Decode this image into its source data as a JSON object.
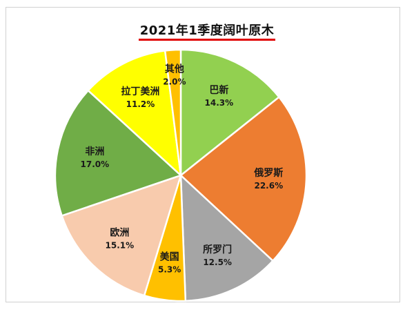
{
  "chart_data": {
    "type": "pie",
    "title": "2021年1季度阔叶原木",
    "slices": [
      {
        "label": "巴新",
        "value": 14.3,
        "value_label": "14.3%",
        "color": "#92d050"
      },
      {
        "label": "俄罗斯",
        "value": 22.6,
        "value_label": "22.6%",
        "color": "#ed7d31"
      },
      {
        "label": "所罗门",
        "value": 12.5,
        "value_label": "12.5%",
        "color": "#a5a5a5"
      },
      {
        "label": "美国",
        "value": 5.3,
        "value_label": "5.3%",
        "color": "#ffc000"
      },
      {
        "label": "欧洲",
        "value": 15.1,
        "value_label": "15.1%",
        "color": "#f8cbad"
      },
      {
        "label": "非洲",
        "value": 17.0,
        "value_label": "17.0%",
        "color": "#70ad47"
      },
      {
        "label": "拉丁美洲",
        "value": 11.2,
        "value_label": "11.2%",
        "color": "#ffff00"
      },
      {
        "label": "其他",
        "value": 2.0,
        "value_label": "2.0%",
        "color": "#ffc000"
      }
    ],
    "start_angle_deg": 0,
    "direction": "clockwise",
    "legend": "none"
  }
}
